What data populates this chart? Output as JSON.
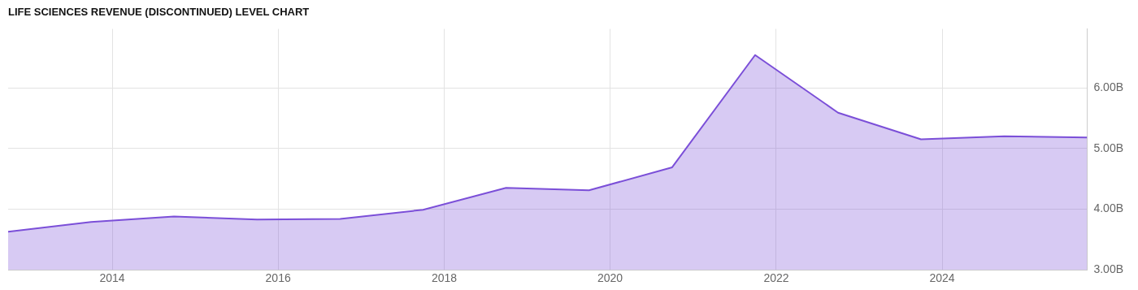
{
  "chart_data": {
    "type": "area",
    "title": "LIFE SCIENCES REVENUE (DISCONTINUED) LEVEL CHART",
    "x": [
      "2012-09-30",
      "2013-09-30",
      "2014-09-30",
      "2015-09-30",
      "2016-09-30",
      "2017-09-30",
      "2018-09-30",
      "2019-09-30",
      "2020-09-30",
      "2021-09-30",
      "2022-09-30",
      "2023-09-30",
      "2024-09-30",
      "2025-09-30"
    ],
    "series": [
      {
        "color": "#7b4fd8",
        "values": [
          3.63,
          3.79,
          3.88,
          3.83,
          3.84,
          3.99,
          4.35,
          4.31,
          4.69,
          6.54,
          5.59,
          5.15,
          5.2,
          5.18
        ]
      }
    ],
    "xlim": [
      "2012-09-30",
      "2025-09-30"
    ],
    "xticks": [
      "2014",
      "2016",
      "2018",
      "2020",
      "2022",
      "2024"
    ],
    "ylim": [
      3,
      6.97
    ],
    "yticks": [
      {
        "value": 3,
        "label": "3.00B"
      },
      {
        "value": 4,
        "label": "4.00B"
      },
      {
        "value": 5,
        "label": "5.00B"
      },
      {
        "value": 6,
        "label": "6.00B"
      }
    ],
    "grid": true,
    "legend": false,
    "marker": "none",
    "line_style": "solid"
  }
}
